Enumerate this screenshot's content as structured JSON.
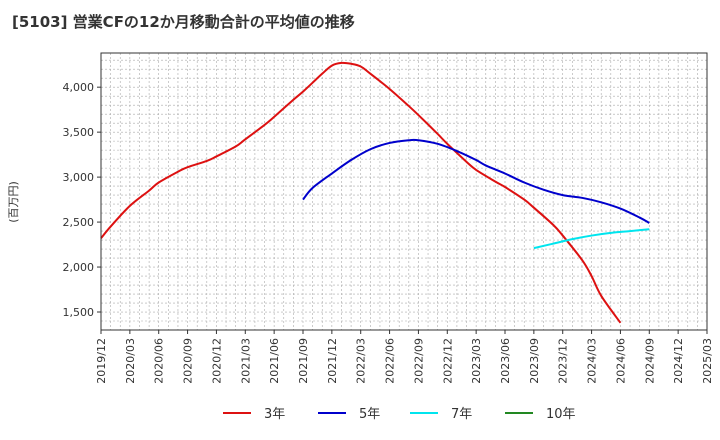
{
  "chart_data": {
    "type": "line",
    "title": "[5103]  営業CFの12か月移動合計の平均値の推移",
    "ylabel": "(百万円)",
    "xlabel": "",
    "ylim": [
      1300,
      4380
    ],
    "xlim": [
      "2019-12",
      "2025-03"
    ],
    "grid": true,
    "legend_position": "bottom",
    "x_ticks": [
      "2019/12",
      "2020/03",
      "2020/06",
      "2020/09",
      "2020/12",
      "2021/03",
      "2021/06",
      "2021/09",
      "2021/12",
      "2022/03",
      "2022/06",
      "2022/09",
      "2022/12",
      "2023/03",
      "2023/06",
      "2023/09",
      "2023/12",
      "2024/03",
      "2024/06",
      "2024/09",
      "2024/12",
      "2025/03"
    ],
    "y_ticks": [
      {
        "value": 1500,
        "label": "1,500"
      },
      {
        "value": 2000,
        "label": "2,000"
      },
      {
        "value": 2500,
        "label": "2,500"
      },
      {
        "value": 3000,
        "label": "3,000"
      },
      {
        "value": 3500,
        "label": "3,500"
      },
      {
        "value": 4000,
        "label": "4,000"
      }
    ],
    "series": [
      {
        "name": "3年",
        "color": "#dd1111",
        "points": [
          [
            "2019-12",
            2320
          ],
          [
            "2020-01",
            2450
          ],
          [
            "2020-03",
            2680
          ],
          [
            "2020-05",
            2850
          ],
          [
            "2020-06",
            2940
          ],
          [
            "2020-08",
            3060
          ],
          [
            "2020-09",
            3110
          ],
          [
            "2020-11",
            3180
          ],
          [
            "2020-12",
            3230
          ],
          [
            "2021-02",
            3340
          ],
          [
            "2021-03",
            3420
          ],
          [
            "2021-05",
            3580
          ],
          [
            "2021-06",
            3670
          ],
          [
            "2021-08",
            3860
          ],
          [
            "2021-09",
            3950
          ],
          [
            "2021-10",
            4050
          ],
          [
            "2021-11",
            4150
          ],
          [
            "2021-12",
            4240
          ],
          [
            "2022-01",
            4270
          ],
          [
            "2022-02",
            4260
          ],
          [
            "2022-03",
            4230
          ],
          [
            "2022-04",
            4150
          ],
          [
            "2022-06",
            3980
          ],
          [
            "2022-08",
            3790
          ],
          [
            "2022-09",
            3690
          ],
          [
            "2022-11",
            3480
          ],
          [
            "2022-12",
            3370
          ],
          [
            "2023-02",
            3170
          ],
          [
            "2023-03",
            3080
          ],
          [
            "2023-05",
            2950
          ],
          [
            "2023-06",
            2890
          ],
          [
            "2023-08",
            2750
          ],
          [
            "2023-09",
            2660
          ],
          [
            "2023-11",
            2470
          ],
          [
            "2023-12",
            2350
          ],
          [
            "2024-02",
            2080
          ],
          [
            "2024-03",
            1900
          ],
          [
            "2024-04",
            1680
          ],
          [
            "2024-06",
            1380
          ]
        ]
      },
      {
        "name": "5年",
        "color": "#0000cc",
        "points": [
          [
            "2021-09",
            2750
          ],
          [
            "2021-10",
            2880
          ],
          [
            "2021-12",
            3040
          ],
          [
            "2022-02",
            3190
          ],
          [
            "2022-04",
            3310
          ],
          [
            "2022-06",
            3380
          ],
          [
            "2022-08",
            3410
          ],
          [
            "2022-09",
            3410
          ],
          [
            "2022-11",
            3370
          ],
          [
            "2023-01",
            3290
          ],
          [
            "2023-03",
            3190
          ],
          [
            "2023-04",
            3130
          ],
          [
            "2023-06",
            3040
          ],
          [
            "2023-08",
            2940
          ],
          [
            "2023-10",
            2860
          ],
          [
            "2023-12",
            2800
          ],
          [
            "2024-02",
            2770
          ],
          [
            "2024-04",
            2720
          ],
          [
            "2024-06",
            2650
          ],
          [
            "2024-08",
            2550
          ],
          [
            "2024-09",
            2490
          ]
        ]
      },
      {
        "name": "7年",
        "color": "#00e5ee",
        "points": [
          [
            "2023-09",
            2210
          ],
          [
            "2023-11",
            2260
          ],
          [
            "2024-01",
            2310
          ],
          [
            "2024-03",
            2350
          ],
          [
            "2024-05",
            2380
          ],
          [
            "2024-07",
            2400
          ],
          [
            "2024-09",
            2420
          ]
        ]
      },
      {
        "name": "10年",
        "color": "#228822",
        "points": []
      }
    ]
  }
}
